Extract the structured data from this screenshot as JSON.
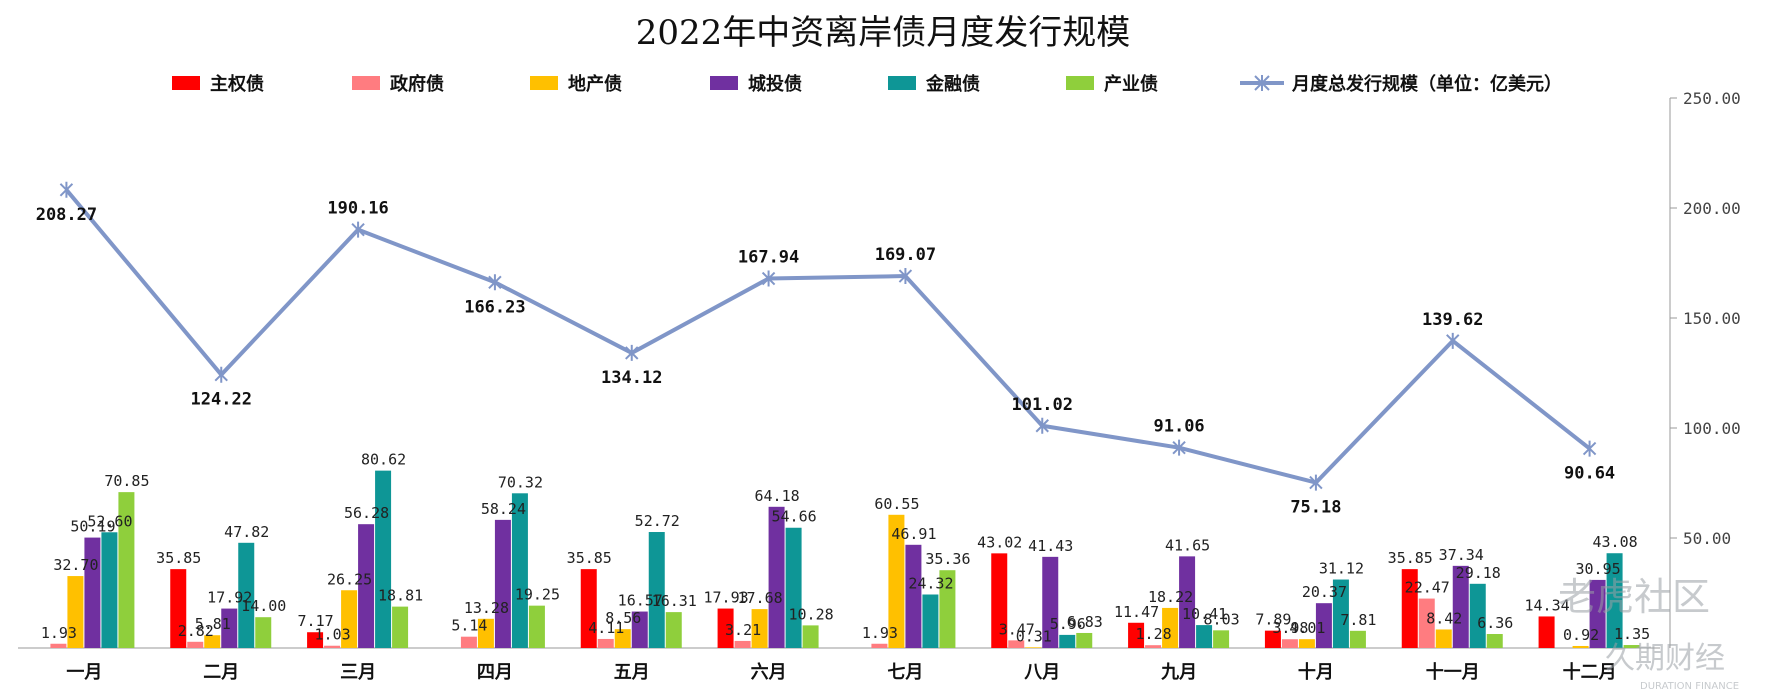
{
  "chart_data": {
    "type": "bar",
    "title": "2022年中资离岸债月度发行规模",
    "categories": [
      "一月",
      "二月",
      "三月",
      "四月",
      "五月",
      "六月",
      "七月",
      "八月",
      "九月",
      "十月",
      "十一月",
      "十二月"
    ],
    "series": [
      {
        "name": "主权债",
        "color": "#ff0000",
        "values": [
          null,
          35.85,
          7.17,
          null,
          35.85,
          17.93,
          null,
          43.02,
          11.47,
          7.89,
          35.85,
          14.34
        ]
      },
      {
        "name": "政府债",
        "color": "#ff7c80",
        "values": [
          1.93,
          2.82,
          1.03,
          5.14,
          4.11,
          3.21,
          1.93,
          3.47,
          1.28,
          3.98,
          22.47,
          null
        ]
      },
      {
        "name": "地产债",
        "color": "#ffc000",
        "values": [
          32.7,
          5.81,
          26.25,
          13.28,
          8.56,
          17.68,
          60.55,
          0.31,
          18.22,
          4.01,
          8.42,
          0.92
        ]
      },
      {
        "name": "城投债",
        "color": "#7030a0",
        "values": [
          50.19,
          17.92,
          56.28,
          58.24,
          16.57,
          64.18,
          46.91,
          41.43,
          41.65,
          20.37,
          37.34,
          30.95
        ]
      },
      {
        "name": "金融债",
        "color": "#0e9696",
        "values": [
          52.6,
          47.82,
          80.62,
          70.32,
          52.72,
          54.66,
          24.32,
          5.96,
          10.41,
          31.12,
          29.18,
          43.08
        ]
      },
      {
        "name": "产业债",
        "color": "#8fcf3c",
        "values": [
          70.85,
          14.0,
          18.81,
          19.25,
          16.31,
          10.28,
          35.36,
          6.83,
          8.03,
          7.81,
          6.36,
          1.35
        ]
      }
    ],
    "line_series": {
      "name": "月度总发行规模（单位：亿美元）",
      "color": "#8096c8",
      "values": [
        208.27,
        124.22,
        190.16,
        166.23,
        134.12,
        167.94,
        169.07,
        101.02,
        91.06,
        75.18,
        139.62,
        90.64
      ]
    },
    "y_axis_right": {
      "min": 0,
      "max": 250,
      "ticks": [
        "50.00",
        "100.00",
        "150.00",
        "200.00",
        "250.00"
      ]
    },
    "legend_position": "top"
  },
  "watermark": {
    "text": "老虎社区",
    "brand": "久期财经",
    "brand_sub": "DURATION FINANCE"
  }
}
